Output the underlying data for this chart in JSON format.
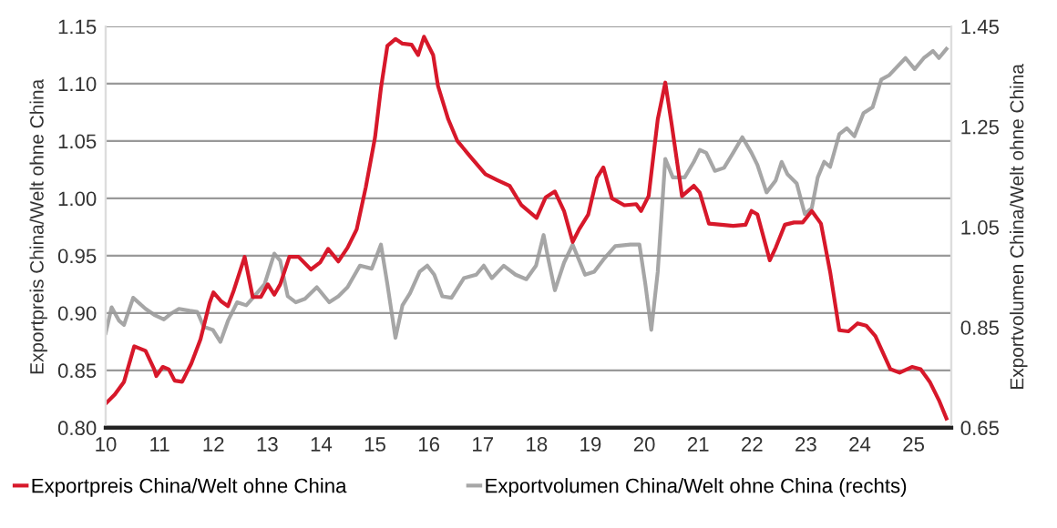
{
  "chart_data": {
    "type": "line",
    "ylabel": "Exportpreis China/Welt ohne China",
    "y2label": "Exportvolumen China/Welt ohne China",
    "xlim": [
      10,
      25.7
    ],
    "xticks": [
      10,
      11,
      12,
      13,
      14,
      15,
      16,
      17,
      18,
      19,
      20,
      21,
      22,
      23,
      24,
      25
    ],
    "ylim": [
      0.8,
      1.15
    ],
    "yticks": [
      {
        "value": 0.8,
        "label": "0.80"
      },
      0.85,
      {
        "value": 0.9,
        "label": "0.90"
      },
      0.95,
      {
        "value": 1.0,
        "label": "1.00"
      },
      1.05,
      {
        "value": 1.1,
        "label": "1.10"
      },
      1.15
    ],
    "y2lim": [
      0.65,
      1.45
    ],
    "y2ticks": [
      0.65,
      0.85,
      1.05,
      1.25,
      1.45
    ],
    "grid": "y",
    "legend": "bottom",
    "marker": "none",
    "line_style": "solid",
    "series": [
      {
        "name": "Exportpreis China/Welt ohne China",
        "color": "#d7182a",
        "x": [
          10.0,
          10.17,
          10.34,
          10.53,
          10.74,
          10.9,
          10.94,
          11.06,
          11.17,
          11.28,
          11.42,
          11.59,
          11.76,
          11.93,
          12.0,
          12.15,
          12.27,
          12.38,
          12.58,
          12.73,
          12.88,
          13.01,
          13.13,
          13.24,
          13.41,
          13.58,
          13.81,
          13.98,
          14.13,
          14.32,
          14.49,
          14.66,
          14.83,
          15.0,
          15.11,
          15.23,
          15.38,
          15.51,
          15.68,
          15.8,
          15.91,
          16.08,
          16.17,
          16.36,
          16.53,
          16.76,
          17.05,
          17.27,
          17.5,
          17.72,
          18.0,
          18.17,
          18.34,
          18.51,
          18.67,
          18.79,
          18.96,
          19.12,
          19.24,
          19.4,
          19.63,
          19.85,
          19.94,
          20.08,
          20.25,
          20.39,
          20.51,
          20.7,
          20.92,
          21.03,
          21.2,
          21.43,
          21.65,
          21.88,
          21.99,
          22.1,
          22.33,
          22.44,
          22.61,
          22.78,
          22.94,
          23.11,
          23.28,
          23.45,
          23.62,
          23.79,
          23.96,
          24.12,
          24.29,
          24.57,
          24.74,
          24.97,
          25.13,
          25.3,
          25.47,
          25.61
        ],
        "values": [
          0.821,
          0.829,
          0.84,
          0.871,
          0.867,
          0.851,
          0.845,
          0.853,
          0.851,
          0.841,
          0.84,
          0.856,
          0.877,
          0.909,
          0.918,
          0.91,
          0.906,
          0.92,
          0.949,
          0.914,
          0.914,
          0.925,
          0.916,
          0.925,
          0.949,
          0.949,
          0.938,
          0.944,
          0.956,
          0.945,
          0.957,
          0.973,
          1.01,
          1.053,
          1.096,
          1.133,
          1.139,
          1.135,
          1.134,
          1.125,
          1.141,
          1.125,
          1.098,
          1.069,
          1.05,
          1.037,
          1.021,
          1.016,
          1.011,
          0.994,
          0.983,
          1.001,
          1.006,
          0.989,
          0.962,
          0.973,
          0.986,
          1.018,
          1.027,
          1.0,
          0.994,
          0.995,
          0.989,
          1.002,
          1.069,
          1.101,
          1.064,
          1.002,
          1.011,
          1.005,
          0.978,
          0.977,
          0.976,
          0.977,
          0.989,
          0.986,
          0.946,
          0.957,
          0.977,
          0.979,
          0.979,
          0.989,
          0.978,
          0.936,
          0.885,
          0.884,
          0.891,
          0.889,
          0.88,
          0.851,
          0.848,
          0.853,
          0.851,
          0.84,
          0.824,
          0.808
        ]
      },
      {
        "name": "Exportvolumen China/Welt ohne China (rechts)",
        "color": "#a6a6a6",
        "axis": "y2",
        "x": [
          10.0,
          10.11,
          10.25,
          10.34,
          10.51,
          10.74,
          10.9,
          11.08,
          11.22,
          11.36,
          11.56,
          11.7,
          11.82,
          11.99,
          12.13,
          12.27,
          12.44,
          12.61,
          12.76,
          12.95,
          13.13,
          13.24,
          13.38,
          13.53,
          13.7,
          13.92,
          14.15,
          14.32,
          14.49,
          14.72,
          14.94,
          15.11,
          15.23,
          15.38,
          15.51,
          15.65,
          15.83,
          15.97,
          16.1,
          16.25,
          16.42,
          16.65,
          16.88,
          17.02,
          17.17,
          17.39,
          17.61,
          17.81,
          17.99,
          18.13,
          18.22,
          18.34,
          18.51,
          18.67,
          18.9,
          19.07,
          19.24,
          19.46,
          19.74,
          19.91,
          20.02,
          20.13,
          20.25,
          20.39,
          20.53,
          20.75,
          20.92,
          21.03,
          21.15,
          21.31,
          21.48,
          21.65,
          21.82,
          21.99,
          22.1,
          22.27,
          22.44,
          22.55,
          22.66,
          22.83,
          22.98,
          23.11,
          23.22,
          23.34,
          23.45,
          23.62,
          23.76,
          23.9,
          24.07,
          24.24,
          24.4,
          24.55,
          24.69,
          24.85,
          25.02,
          25.19,
          25.36,
          25.47,
          25.61
        ],
        "values": [
          0.839,
          0.89,
          0.863,
          0.855,
          0.909,
          0.887,
          0.875,
          0.866,
          0.878,
          0.887,
          0.883,
          0.881,
          0.851,
          0.845,
          0.821,
          0.863,
          0.9,
          0.894,
          0.912,
          0.936,
          0.997,
          0.983,
          0.912,
          0.9,
          0.907,
          0.93,
          0.9,
          0.912,
          0.93,
          0.973,
          0.967,
          1.015,
          0.936,
          0.829,
          0.894,
          0.918,
          0.961,
          0.973,
          0.955,
          0.912,
          0.909,
          0.948,
          0.955,
          0.973,
          0.948,
          0.973,
          0.955,
          0.946,
          0.973,
          1.034,
          0.985,
          0.924,
          0.979,
          1.015,
          0.955,
          0.961,
          0.985,
          1.012,
          1.015,
          1.015,
          0.936,
          0.845,
          0.961,
          1.186,
          1.149,
          1.149,
          1.18,
          1.204,
          1.198,
          1.162,
          1.168,
          1.198,
          1.229,
          1.198,
          1.174,
          1.119,
          1.143,
          1.18,
          1.155,
          1.137,
          1.076,
          1.088,
          1.149,
          1.18,
          1.17,
          1.235,
          1.247,
          1.231,
          1.277,
          1.289,
          1.344,
          1.353,
          1.369,
          1.387,
          1.365,
          1.387,
          1.401,
          1.387,
          1.405
        ]
      }
    ]
  }
}
